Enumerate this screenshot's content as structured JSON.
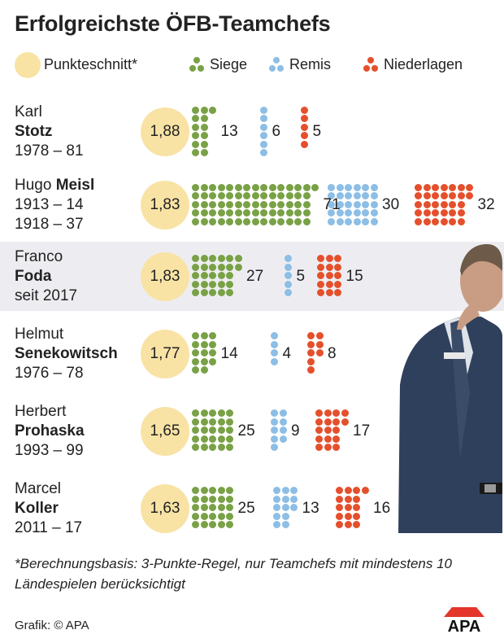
{
  "title": "Erfolgreichste ÖFB-Teamchefs",
  "legend": {
    "average_label": "Punkteschnitt*",
    "wins_label": "Siege",
    "draws_label": "Remis",
    "losses_label": "Niederlagen"
  },
  "colors": {
    "average": "#f8e3a5",
    "wins": "#79a146",
    "draws": "#8cbee6",
    "losses": "#e4502c",
    "highlight_row": "#ededf1"
  },
  "chart_data": {
    "type": "table",
    "title": "Erfolgreichste ÖFB-Teamchefs",
    "columns": [
      "Punkteschnitt*",
      "Siege",
      "Remis",
      "Niederlagen"
    ],
    "rows": [
      {
        "first": "Karl",
        "last": "Stotz",
        "lines": [
          "Karl",
          "Stotz",
          "1978 – 81"
        ],
        "bold_line": 1,
        "avg": "1,88",
        "avg_value": 1.88,
        "wins": 13,
        "draws": 6,
        "losses": 5,
        "highlight": false
      },
      {
        "first": "Hugo",
        "last": "Meisl",
        "lines": [
          "Hugo Meisl",
          "1913 – 14",
          "1918 – 37"
        ],
        "bold_line": 0,
        "avg": "1,83",
        "avg_value": 1.83,
        "wins": 71,
        "draws": 30,
        "losses": 32,
        "highlight": false
      },
      {
        "first": "Franco",
        "last": "Foda",
        "lines": [
          "Franco",
          "Foda",
          "seit 2017"
        ],
        "bold_line": 1,
        "avg": "1,83",
        "avg_value": 1.83,
        "wins": 27,
        "draws": 5,
        "losses": 15,
        "highlight": true
      },
      {
        "first": "Helmut",
        "last": "Senekowitsch",
        "lines": [
          "Helmut",
          "Senekowitsch",
          "1976 – 78"
        ],
        "bold_line": 1,
        "avg": "1,77",
        "avg_value": 1.77,
        "wins": 14,
        "draws": 4,
        "losses": 8,
        "highlight": false
      },
      {
        "first": "Herbert",
        "last": "Prohaska",
        "lines": [
          "Herbert",
          "Prohaska",
          "1993 – 99"
        ],
        "bold_line": 1,
        "avg": "1,65",
        "avg_value": 1.65,
        "wins": 25,
        "draws": 9,
        "losses": 17,
        "highlight": false
      },
      {
        "first": "Marcel",
        "last": "Koller",
        "lines": [
          "Marcel",
          "Koller",
          "2011 – 17"
        ],
        "bold_line": 1,
        "avg": "1,63",
        "avg_value": 1.63,
        "wins": 25,
        "draws": 13,
        "losses": 16,
        "highlight": false
      }
    ]
  },
  "footnote": "*Berechnungsbasis: 3-Punkte-Regel, nur Teamchefs mit mindestens 10 Ländespielen berücksichtigt",
  "credit": "Grafik: © APA",
  "logo_text": "APA"
}
